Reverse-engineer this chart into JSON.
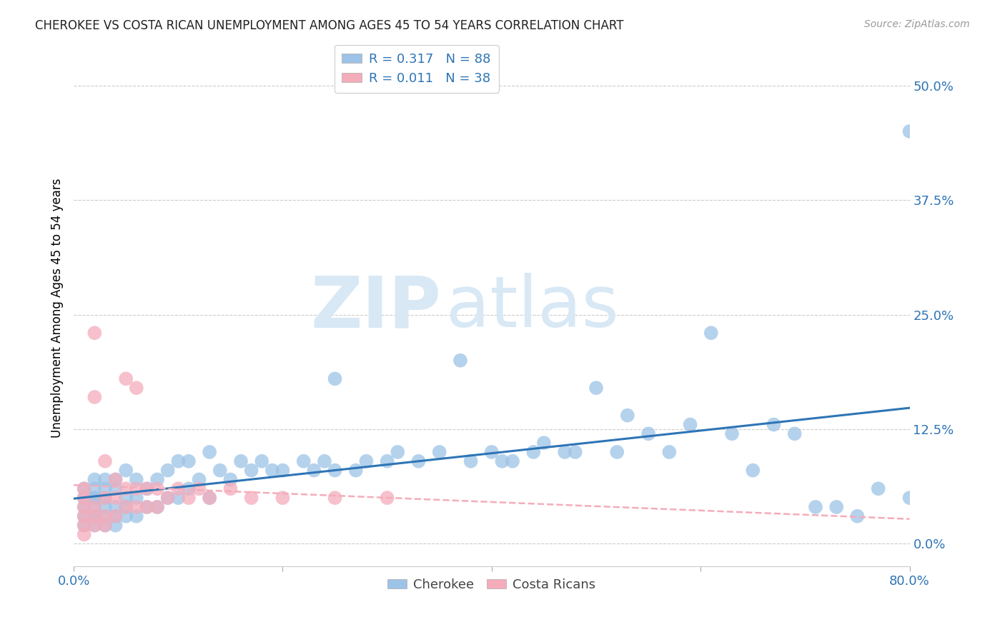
{
  "title": "CHEROKEE VS COSTA RICAN UNEMPLOYMENT AMONG AGES 45 TO 54 YEARS CORRELATION CHART",
  "source": "Source: ZipAtlas.com",
  "ylabel": "Unemployment Among Ages 45 to 54 years",
  "xlim": [
    0.0,
    0.8
  ],
  "ylim": [
    -0.025,
    0.54
  ],
  "yticks": [
    0.0,
    0.125,
    0.25,
    0.375,
    0.5
  ],
  "ytick_labels": [
    "0.0%",
    "12.5%",
    "25.0%",
    "37.5%",
    "50.0%"
  ],
  "xticks": [
    0.0,
    0.2,
    0.4,
    0.6,
    0.8
  ],
  "xtick_labels": [
    "0.0%",
    "",
    "",
    "",
    "80.0%"
  ],
  "cherokee_color": "#9dc3e6",
  "costa_rican_color": "#f4acbb",
  "cherokee_line_color": "#2e75b6",
  "costa_rican_line_color": "#f4acbb",
  "watermark_zip": "ZIP",
  "watermark_atlas": "atlas",
  "background_color": "#ffffff",
  "grid_color": "#cccccc",
  "cherokee_x": [
    0.01,
    0.01,
    0.01,
    0.01,
    0.01,
    0.02,
    0.02,
    0.02,
    0.02,
    0.02,
    0.02,
    0.02,
    0.02,
    0.03,
    0.03,
    0.03,
    0.03,
    0.03,
    0.03,
    0.04,
    0.04,
    0.04,
    0.04,
    0.04,
    0.05,
    0.05,
    0.05,
    0.05,
    0.06,
    0.06,
    0.06,
    0.07,
    0.07,
    0.08,
    0.08,
    0.09,
    0.09,
    0.1,
    0.1,
    0.11,
    0.11,
    0.12,
    0.13,
    0.13,
    0.14,
    0.15,
    0.16,
    0.17,
    0.18,
    0.19,
    0.2,
    0.22,
    0.23,
    0.24,
    0.25,
    0.25,
    0.27,
    0.28,
    0.3,
    0.31,
    0.33,
    0.35,
    0.37,
    0.38,
    0.4,
    0.41,
    0.42,
    0.44,
    0.45,
    0.47,
    0.48,
    0.5,
    0.52,
    0.53,
    0.55,
    0.57,
    0.59,
    0.61,
    0.63,
    0.65,
    0.67,
    0.69,
    0.71,
    0.73,
    0.75,
    0.77,
    0.8,
    0.8
  ],
  "cherokee_y": [
    0.02,
    0.03,
    0.04,
    0.05,
    0.06,
    0.02,
    0.03,
    0.03,
    0.04,
    0.05,
    0.05,
    0.06,
    0.07,
    0.02,
    0.03,
    0.04,
    0.05,
    0.06,
    0.07,
    0.02,
    0.03,
    0.04,
    0.06,
    0.07,
    0.03,
    0.04,
    0.05,
    0.08,
    0.03,
    0.05,
    0.07,
    0.04,
    0.06,
    0.04,
    0.07,
    0.05,
    0.08,
    0.05,
    0.09,
    0.06,
    0.09,
    0.07,
    0.05,
    0.1,
    0.08,
    0.07,
    0.09,
    0.08,
    0.09,
    0.08,
    0.08,
    0.09,
    0.08,
    0.09,
    0.08,
    0.18,
    0.08,
    0.09,
    0.09,
    0.1,
    0.09,
    0.1,
    0.2,
    0.09,
    0.1,
    0.09,
    0.09,
    0.1,
    0.11,
    0.1,
    0.1,
    0.17,
    0.1,
    0.14,
    0.12,
    0.1,
    0.13,
    0.23,
    0.12,
    0.08,
    0.13,
    0.12,
    0.04,
    0.04,
    0.03,
    0.06,
    0.05,
    0.45
  ],
  "costa_x": [
    0.01,
    0.01,
    0.01,
    0.01,
    0.01,
    0.01,
    0.02,
    0.02,
    0.02,
    0.02,
    0.02,
    0.03,
    0.03,
    0.03,
    0.03,
    0.04,
    0.04,
    0.04,
    0.05,
    0.05,
    0.05,
    0.06,
    0.06,
    0.06,
    0.07,
    0.07,
    0.08,
    0.08,
    0.09,
    0.1,
    0.11,
    0.12,
    0.13,
    0.15,
    0.17,
    0.2,
    0.25,
    0.3
  ],
  "costa_y": [
    0.01,
    0.02,
    0.03,
    0.04,
    0.05,
    0.06,
    0.02,
    0.03,
    0.04,
    0.16,
    0.23,
    0.02,
    0.03,
    0.05,
    0.09,
    0.03,
    0.05,
    0.07,
    0.04,
    0.06,
    0.18,
    0.04,
    0.06,
    0.17,
    0.04,
    0.06,
    0.04,
    0.06,
    0.05,
    0.06,
    0.05,
    0.06,
    0.05,
    0.06,
    0.05,
    0.05,
    0.05,
    0.05
  ]
}
